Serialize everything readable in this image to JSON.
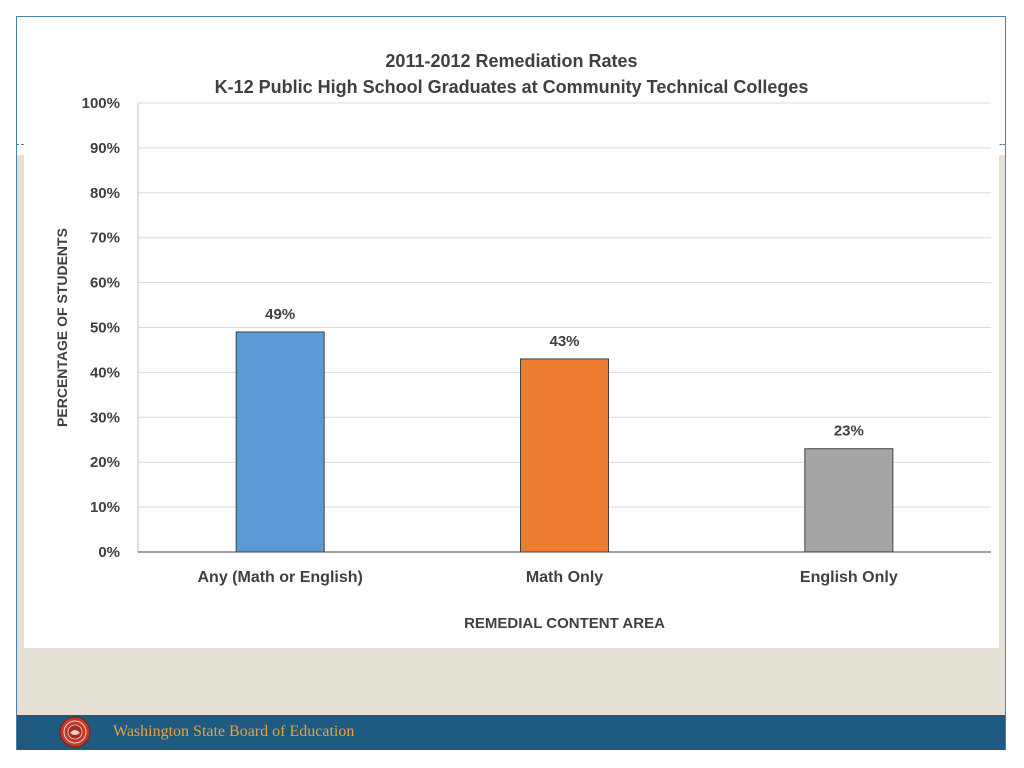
{
  "chart_data": {
    "type": "bar",
    "title_line1": "2011-2012 Remediation Rates",
    "title_line2": "K-12 Public High School Graduates at Community Technical Colleges",
    "categories": [
      "Any (Math or English)",
      "Math Only",
      "English Only"
    ],
    "values": [
      49,
      43,
      23
    ],
    "value_labels": [
      "49%",
      "43%",
      "23%"
    ],
    "bar_colors": [
      "#5b9bd5",
      "#ed7d31",
      "#a5a5a5"
    ],
    "xlabel": "REMEDIAL CONTENT AREA",
    "ylabel": "PERCENTAGE OF STUDENTS",
    "ylim": [
      0,
      100
    ],
    "yticks": [
      0,
      10,
      20,
      30,
      40,
      50,
      60,
      70,
      80,
      90,
      100
    ],
    "ytick_labels": [
      "0%",
      "10%",
      "20%",
      "30%",
      "40%",
      "50%",
      "60%",
      "70%",
      "80%",
      "90%",
      "100%"
    ],
    "grid": true,
    "legend": "none"
  },
  "footer": {
    "org_name": "Washington State Board of Education",
    "seal_icon": "state-seal-icon"
  },
  "colors": {
    "footer_bar": "#1f5a80",
    "footer_text": "#e8a23a",
    "band": "#e4e0d6"
  }
}
